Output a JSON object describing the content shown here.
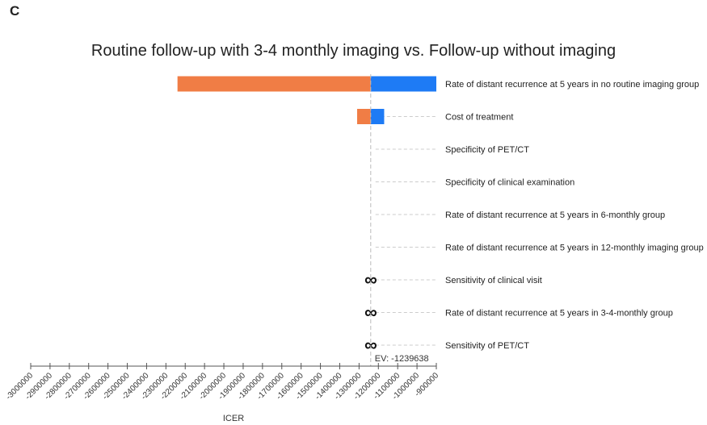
{
  "panel_label": "C",
  "chart_data": {
    "type": "tornado",
    "title": "Routine follow-up with 3-4 monthly imaging vs. Follow-up without imaging",
    "xlabel": "ICER",
    "xlim": [
      -3000000,
      -900000
    ],
    "x_ticks": [
      -3000000,
      -2900000,
      -2800000,
      -2700000,
      -2600000,
      -2500000,
      -2400000,
      -2300000,
      -2200000,
      -2100000,
      -2000000,
      -1900000,
      -1800000,
      -1700000,
      -1600000,
      -1500000,
      -1400000,
      -1300000,
      -1200000,
      -1100000,
      -1000000,
      -900000
    ],
    "x_tick_labels": [
      "-3000000",
      "-2900000",
      "-2800000",
      "-2700000",
      "-2600000",
      "-2500000",
      "-2400000",
      "-2300000",
      "-2200000",
      "-2100000",
      "-2000000",
      "-1900000",
      "-1800000",
      "-1700000",
      "-1600000",
      "-1500000",
      "-1400000",
      "-1300000",
      "-1200000",
      "-1100000",
      "-1000000",
      "-900000"
    ],
    "ev_value": -1239638,
    "ev_label": "EV: -1239638",
    "colors": {
      "low": "#f07d45",
      "high": "#1e7bf5",
      "ev_line": "#bbbbbb",
      "dash": "#cccccc",
      "axis": "#555555"
    },
    "parameters": [
      {
        "label": "Rate of distant recurrence at 5 years in no routine imaging group",
        "low": -2240000,
        "high": -900000,
        "infinite": false
      },
      {
        "label": "Cost of treatment",
        "low": -1310000,
        "high": -1170000,
        "infinite": false
      },
      {
        "label": "Specificity of PET/CT",
        "low": -1239638,
        "high": -1239638,
        "infinite": false
      },
      {
        "label": "Specificity of clinical examination",
        "low": -1239638,
        "high": -1239638,
        "infinite": false
      },
      {
        "label": "Rate of distant recurrence at 5 years in 6-monthly group",
        "low": -1239638,
        "high": -1239638,
        "infinite": false
      },
      {
        "label": "Rate of distant recurrence at 5 years in 12-monthly imaging group",
        "low": -1239638,
        "high": -1239638,
        "infinite": false
      },
      {
        "label": "Sensitivity of clinical visit",
        "low": -1239638,
        "high": -1239638,
        "infinite": true
      },
      {
        "label": "Rate of distant recurrence at 5 years in 3-4-monthly group",
        "low": -1239638,
        "high": -1239638,
        "infinite": true
      },
      {
        "label": "Sensitivity of PET/CT",
        "low": -1239638,
        "high": -1239638,
        "infinite": true
      }
    ],
    "infinity_symbol": "∞"
  }
}
